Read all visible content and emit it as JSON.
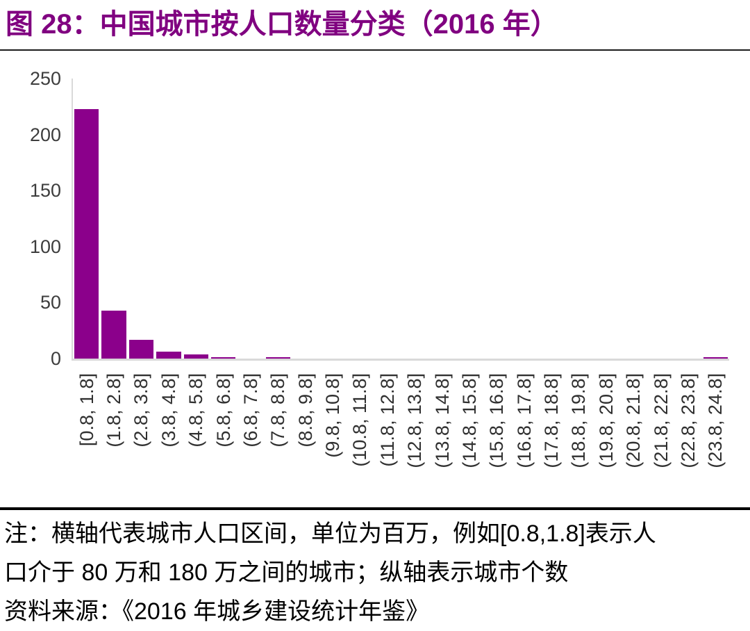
{
  "title": "图 28：中国城市按人口数量分类（2016 年）",
  "chart_data": {
    "type": "bar",
    "title": "中国城市按人口数量分类（2016 年）",
    "categories": [
      "[0.8, 1.8]",
      "(1.8, 2.8]",
      "(2.8, 3.8]",
      "(3.8, 4.8]",
      "(4.8, 5.8]",
      "(5.8, 6.8]",
      "(6.8, 7.8]",
      "(7.8, 8.8]",
      "(8.8, 9.8]",
      "(9.8, 10.8]",
      "(10.8, 11.8]",
      "(11.8, 12.8]",
      "(12.8, 13.8]",
      "(13.8, 14.8]",
      "(14.8, 15.8]",
      "(15.8, 16.8]",
      "(16.8, 17.8]",
      "(17.8, 18.8]",
      "(18.8, 19.8]",
      "(19.8, 20.8]",
      "(20.8, 21.8]",
      "(21.8, 22.8]",
      "(22.8, 23.8]",
      "(23.8, 24.8]"
    ],
    "values": [
      223,
      43,
      17,
      6,
      4,
      1,
      0,
      1,
      0,
      0,
      0,
      0,
      0,
      0,
      0,
      0,
      0,
      0,
      0,
      0,
      0,
      0,
      0,
      1
    ],
    "xlabel": "",
    "ylabel": "",
    "ylim": [
      0,
      250
    ],
    "yticks": [
      0,
      50,
      100,
      150,
      200,
      250
    ],
    "grid": false,
    "legend": false,
    "bar_color": "#8B008B",
    "axis_color": "#d9d9d9",
    "tick_color": "#3d3d3d"
  },
  "notes": {
    "line1": "注：横轴代表城市人口区间，单位为百万，例如[0.8,1.8]表示人",
    "line2": "口介于 80 万和 180 万之间的城市；纵轴表示城市个数",
    "line3": "资料来源：《2016 年城乡建设统计年鉴》"
  },
  "colors": {
    "title": "#800080",
    "divider_thin": "#1b1b1b",
    "divider_thick": "#000000",
    "note_text": "#000000"
  }
}
